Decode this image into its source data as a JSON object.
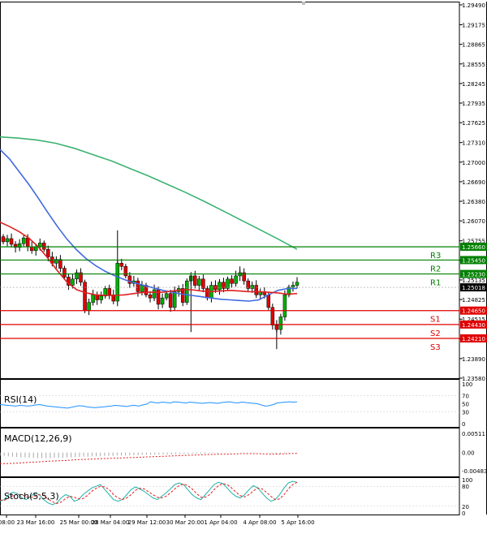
{
  "chart_data": [
    {
      "type": "candlestick",
      "pane": "price",
      "y_ticks": [
        "1.29490",
        "1.29175",
        "1.28865",
        "1.28555",
        "1.28245",
        "1.27935",
        "1.27625",
        "1.27310",
        "1.27000",
        "1.26690",
        "1.26380",
        "1.26070",
        "1.25755",
        "1.25445",
        "1.25135",
        "1.24825",
        "1.24515",
        "1.24205",
        "1.23890",
        "1.23580"
      ],
      "ylim": [
        1.2358,
        1.2949
      ],
      "levels": [
        {
          "label": "R3",
          "value": 1.2566,
          "value_text": "1.25660",
          "color": "#008000"
        },
        {
          "label": "R2",
          "value": 1.2545,
          "value_text": "1.25450",
          "color": "#008000"
        },
        {
          "label": "R1",
          "value": 1.2523,
          "value_text": "1.25230",
          "color": "#008000"
        },
        {
          "label": "S1",
          "value": 1.2465,
          "value_text": "1.24650",
          "color": "#e00000"
        },
        {
          "label": "S2",
          "value": 1.2443,
          "value_text": "1.24430",
          "color": "#e00000"
        },
        {
          "label": "S3",
          "value": 1.2421,
          "value_text": "1.24210",
          "color": "#e00000"
        }
      ],
      "current_price": {
        "value": 1.25018,
        "value_text": "1.25018"
      },
      "candles_close": [
        1.2574,
        1.2579,
        1.257,
        1.2565,
        1.2571,
        1.258,
        1.2566,
        1.256,
        1.2566,
        1.2572,
        1.2562,
        1.255,
        1.254,
        1.2546,
        1.2532,
        1.2518,
        1.2505,
        1.2515,
        1.2525,
        1.251,
        1.2465,
        1.2478,
        1.249,
        1.2482,
        1.2488,
        1.25,
        1.249,
        1.248,
        1.254,
        1.2535,
        1.252,
        1.2508,
        1.2512,
        1.2495,
        1.2505,
        1.249,
        1.2485,
        1.2498,
        1.2475,
        1.2485,
        1.2492,
        1.247,
        1.2495,
        1.25,
        1.2478,
        1.2512,
        1.252,
        1.2505,
        1.2515,
        1.25,
        1.2485,
        1.2505,
        1.2498,
        1.251,
        1.25,
        1.2515,
        1.2508,
        1.252,
        1.2525,
        1.2512,
        1.25,
        1.2505,
        1.249,
        1.2495,
        1.249,
        1.247,
        1.2442,
        1.2435,
        1.2455,
        1.249,
        1.2502,
        1.2505,
        1.251
      ],
      "ma_fast_red": [
        1.2605,
        1.2598,
        1.259,
        1.258,
        1.2566,
        1.2548,
        1.2528,
        1.251,
        1.2498,
        1.2493,
        1.249,
        1.2489,
        1.2489,
        1.249,
        1.2492,
        1.2494,
        1.2494,
        1.2494,
        1.2496,
        1.2498,
        1.2498,
        1.2496,
        1.2495,
        1.2496,
        1.2497,
        1.2496,
        1.2495,
        1.2495,
        1.2494,
        1.2493,
        1.2491,
        1.2492
      ],
      "ma_mid_blue": [
        1.272,
        1.2705,
        1.2685,
        1.2665,
        1.2643,
        1.262,
        1.2598,
        1.2578,
        1.2561,
        1.2547,
        1.2536,
        1.2527,
        1.252,
        1.2514,
        1.2509,
        1.2505,
        1.2501,
        1.2497,
        1.2494,
        1.2491,
        1.2489,
        1.2487,
        1.2485,
        1.2483,
        1.2482,
        1.2481,
        1.248,
        1.2482,
        1.249,
        1.2497,
        1.25,
        1.25
      ],
      "ma_slow_green": [
        1.274,
        1.2738,
        1.2735,
        1.273,
        1.2722,
        1.2712,
        1.2702,
        1.269,
        1.2678,
        1.2665,
        1.2652,
        1.2638,
        1.2623,
        1.2608,
        1.2593,
        1.2578,
        1.2562
      ],
      "x_ticks": [
        "08:00",
        "23 Mar 16:00",
        "25 Mar 00:00",
        "28 Mar 04:00",
        "29 Mar 12:00",
        "30 Mar 20:00",
        "1 Apr 04:00",
        "4 Apr 08:00",
        "5 Apr 16:00"
      ]
    },
    {
      "type": "line",
      "pane": "rsi",
      "title": "RSI(14)",
      "y_ticks": [
        "100",
        "70",
        "50",
        "30",
        "0"
      ],
      "ylim": [
        0,
        100
      ],
      "values": [
        48,
        47,
        46,
        45,
        44,
        46,
        45,
        44,
        45,
        47,
        48,
        46,
        44,
        43,
        42,
        41,
        40,
        39,
        41,
        43,
        45,
        44,
        42,
        41,
        40,
        41,
        42,
        43,
        44,
        46,
        45,
        44,
        43,
        45,
        46,
        44,
        47,
        49,
        55,
        53,
        52,
        54,
        53,
        52,
        55,
        54,
        53,
        52,
        54,
        53,
        52,
        51,
        52,
        53,
        52,
        51,
        53,
        54,
        55,
        53,
        52,
        54,
        53,
        52,
        51,
        50,
        47,
        44,
        45,
        48,
        52,
        53,
        54,
        55,
        54,
        55
      ]
    },
    {
      "type": "bar+line",
      "pane": "macd",
      "title": "MACD(12,26,9)",
      "y_ticks": [
        "0.005111",
        "0.00",
        "-0.004835"
      ],
      "ylim": [
        -0.004835,
        0.005111
      ],
      "histogram": [
        -0.0008,
        -0.0009,
        -0.001,
        -0.0011,
        -0.0012,
        -0.0013,
        -0.0013,
        -0.0014,
        -0.0014,
        -0.0015,
        -0.0015,
        -0.0015,
        -0.0015,
        -0.0014,
        -0.0014,
        -0.0014,
        -0.0013,
        -0.0013,
        -0.0012,
        -0.0012,
        -0.0011,
        -0.0011,
        -0.001,
        -0.001,
        -0.001,
        -0.0009,
        -0.0009,
        -0.0009,
        -0.0008,
        -0.0008,
        -0.0008,
        -0.0007,
        -0.0007,
        -0.0007,
        -0.0006,
        -0.0006,
        -0.0006,
        -0.0006,
        -0.0005,
        -0.0005,
        -0.0005,
        -0.0005,
        -0.0004,
        -0.0004,
        -0.0004,
        -0.0004,
        -0.0003,
        -0.0003,
        -0.0003,
        -0.0003,
        -0.0002,
        -0.0002,
        -0.0002,
        -0.0001,
        -0.0001,
        -0.0001,
        0.0,
        0.0,
        0.0001,
        0.0001,
        0.0001,
        0.0001,
        0.0,
        0.0,
        -0.0001,
        -0.0002,
        -0.0003,
        -0.0003,
        -0.0002,
        -0.0001,
        0.0,
        0.0
      ],
      "signal": [
        -0.003,
        -0.0029,
        -0.0028,
        -0.0026,
        -0.0025,
        -0.0023,
        -0.0022,
        -0.0021,
        -0.0019,
        -0.0018,
        -0.0017,
        -0.0016,
        -0.0015,
        -0.0014,
        -0.0013,
        -0.0012,
        -0.0011,
        -0.001,
        -0.0009,
        -0.0008,
        -0.0007,
        -0.0006,
        -0.0005,
        -0.0004,
        -0.0004,
        -0.0003,
        -0.0003,
        -0.0003,
        -0.0004,
        -0.0004,
        -0.0003,
        -0.0002
      ]
    },
    {
      "type": "line",
      "pane": "stoch",
      "title": "Stoch(5,5,3)",
      "y_ticks": [
        "100",
        "80",
        "20",
        "0"
      ],
      "ylim": [
        0,
        100
      ],
      "main_teal": [
        35,
        40,
        55,
        62,
        58,
        45,
        40,
        50,
        60,
        55,
        40,
        30,
        25,
        30,
        45,
        55,
        50,
        35,
        40,
        55,
        65,
        75,
        80,
        85,
        70,
        55,
        40,
        35,
        40,
        55,
        70,
        78,
        72,
        65,
        55,
        45,
        40,
        50,
        60,
        72,
        85,
        90,
        85,
        70,
        55,
        45,
        40,
        55,
        70,
        85,
        92,
        88,
        75,
        60,
        50,
        45,
        55,
        70,
        82,
        75,
        60,
        45,
        35,
        40,
        55,
        75,
        90,
        95,
        92
      ],
      "signal_red": [
        38,
        38,
        45,
        52,
        56,
        55,
        48,
        46,
        50,
        55,
        52,
        42,
        34,
        28,
        33,
        43,
        50,
        47,
        42,
        43,
        52,
        65,
        74,
        80,
        78,
        70,
        55,
        45,
        40,
        45,
        55,
        68,
        74,
        72,
        64,
        55,
        47,
        45,
        50,
        60,
        72,
        82,
        87,
        82,
        72,
        58,
        47,
        47,
        55,
        70,
        82,
        88,
        85,
        75,
        63,
        52,
        48,
        55,
        66,
        75,
        72,
        62,
        50,
        40,
        42,
        55,
        72,
        85,
        92
      ]
    }
  ]
}
